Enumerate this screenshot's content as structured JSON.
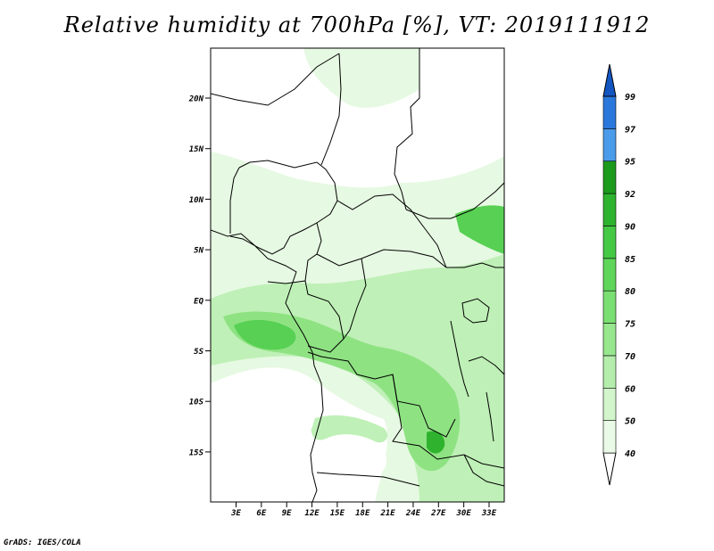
{
  "title": "Relative humidity at 700hPa [%], VT: 2019111912",
  "credit": "GrADS: IGES/COLA",
  "map": {
    "lat_labels": [
      "20N",
      "15N",
      "10N",
      "5N",
      "EQ",
      "5S",
      "10S",
      "15S"
    ],
    "lon_labels": [
      "3E",
      "6E",
      "9E",
      "12E",
      "15E",
      "18E",
      "21E",
      "24E",
      "27E",
      "30E",
      "33E"
    ]
  },
  "colorbar": {
    "levels": [
      "40",
      "50",
      "60",
      "70",
      "75",
      "80",
      "85",
      "90",
      "92",
      "95",
      "97",
      "99"
    ],
    "colors": [
      "#e9fbe6",
      "#d2f5cc",
      "#b5eeac",
      "#98e68e",
      "#7adf73",
      "#5fd65a",
      "#45c945",
      "#2eb32e",
      "#1c9a1c",
      "#4a9cea",
      "#2b78dd",
      "#1356c2"
    ]
  },
  "field_colors": {
    "rh_40_60": "#e6f9e2",
    "rh_60_75": "#bff0b7",
    "rh_75_85": "#8ee282",
    "rh_85_92": "#57d053",
    "rh_92_95": "#2fb32f"
  }
}
